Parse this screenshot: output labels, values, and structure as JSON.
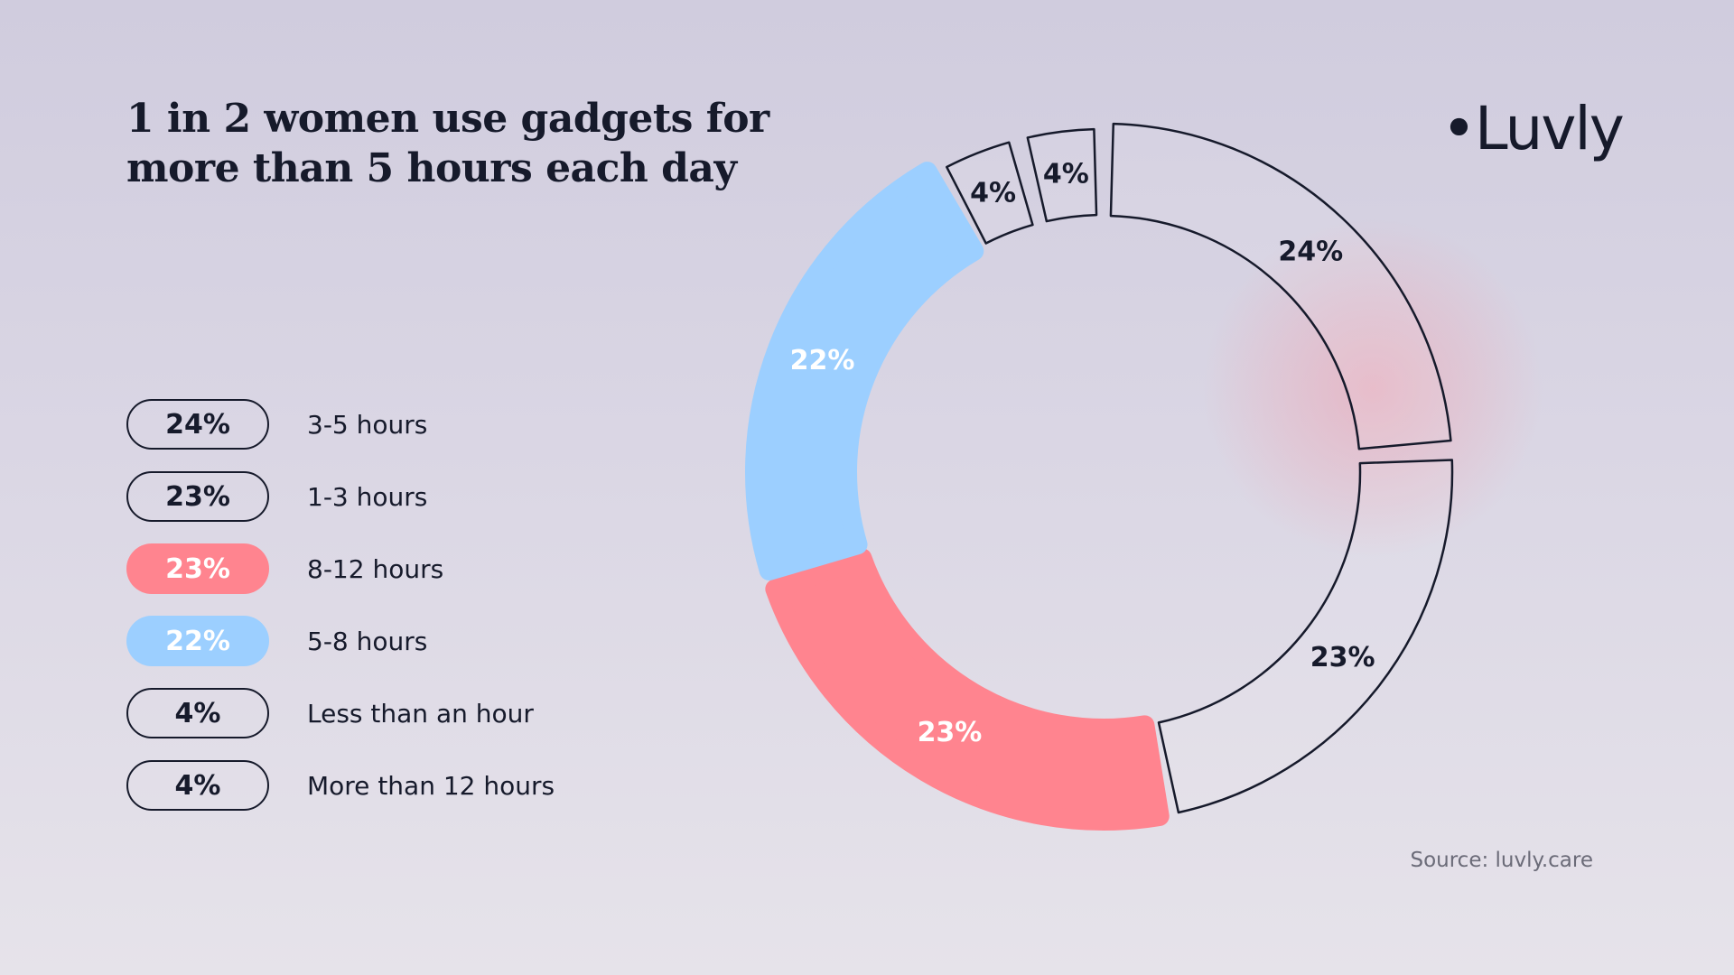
{
  "title": "1 in 2 women use gadgets for more than 5 hours each day",
  "logo": "•Luvly",
  "source": "Source: luvly.care",
  "colors": {
    "text": "#161a2b",
    "pink": "#ff848f",
    "blue": "#9ccfff",
    "outline": "#161a2b"
  },
  "legend": [
    {
      "value": "24%",
      "label": "3-5 hours",
      "style": "outline"
    },
    {
      "value": "23%",
      "label": "1-3 hours",
      "style": "outline"
    },
    {
      "value": "23%",
      "label": "8-12 hours",
      "style": "pink"
    },
    {
      "value": "22%",
      "label": "5-8 hours",
      "style": "blue"
    },
    {
      "value": "4%",
      "label": "Less than an hour",
      "style": "outline"
    },
    {
      "value": "4%",
      "label": "More than 12 hours",
      "style": "outline"
    }
  ],
  "chart_data": {
    "type": "pie",
    "variant": "donut",
    "slices": [
      {
        "name": "3-5 hours",
        "value": 24,
        "label": "24%",
        "style": "outline"
      },
      {
        "name": "1-3 hours",
        "value": 23,
        "label": "23%",
        "style": "outline"
      },
      {
        "name": "8-12 hours",
        "value": 23,
        "label": "23%",
        "style": "pink"
      },
      {
        "name": "5-8 hours",
        "value": 22,
        "label": "22%",
        "style": "blue"
      },
      {
        "name": "Less than an hour",
        "value": 4,
        "label": "4%",
        "style": "outline"
      },
      {
        "name": "More than 12 hours",
        "value": 4,
        "label": "4%",
        "style": "outline"
      }
    ]
  }
}
